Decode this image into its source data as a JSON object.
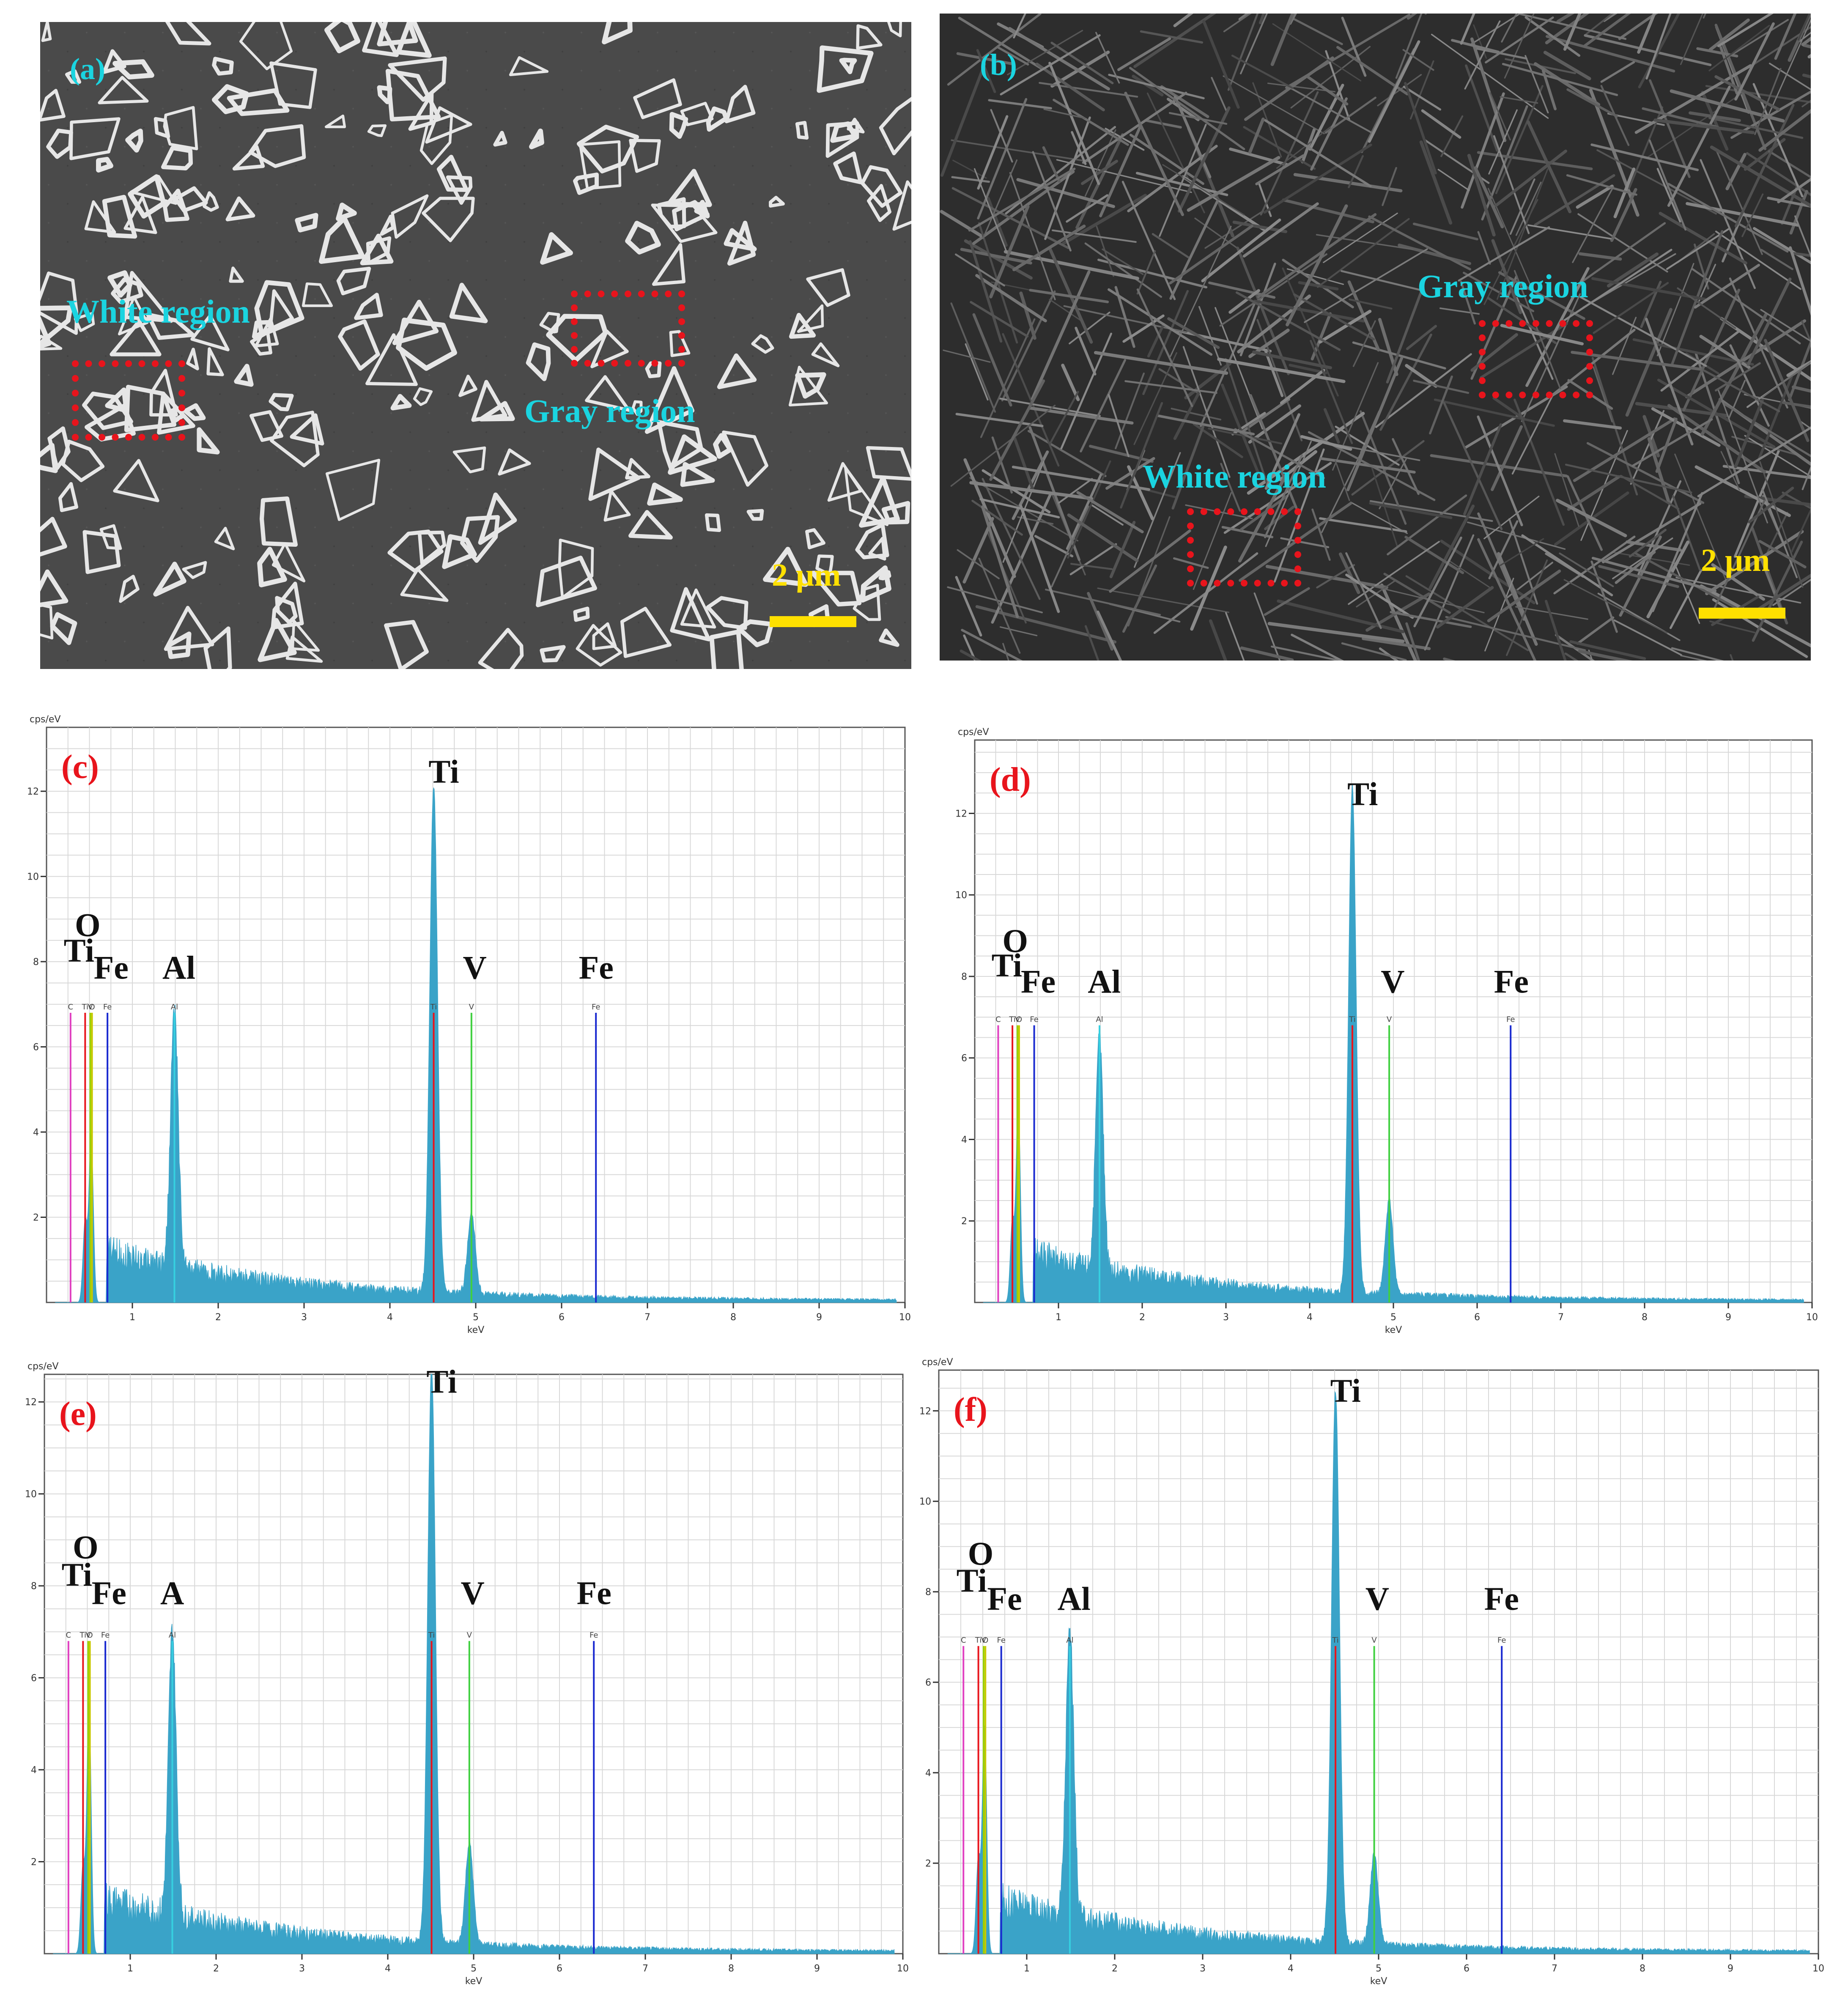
{
  "sem_panels": [
    {
      "panel_label": "(a)",
      "regions": [
        "White region",
        "Gray region"
      ],
      "scale_bar_label": "2 μm",
      "colors": {
        "region_text": "#1ad4e0",
        "roi": "#e8141c",
        "scale": "#ffe000"
      }
    },
    {
      "panel_label": "(b)",
      "regions": [
        "Gray region",
        "White region"
      ],
      "scale_bar_label": "2 μm",
      "colors": {
        "region_text": "#1ad4e0",
        "roi": "#e8141c",
        "scale": "#ffe000"
      }
    }
  ],
  "chart_data": [
    {
      "type": "line",
      "panel_label": "(c)",
      "ylabel": "cps/eV",
      "xlabel": "keV",
      "xlim": [
        0,
        10
      ],
      "ylim": [
        0,
        13.5
      ],
      "x_ticks": [
        1,
        2,
        3,
        4,
        5,
        6,
        7,
        8,
        9,
        10
      ],
      "y_ticks": [
        2,
        4,
        6,
        8,
        10,
        12
      ],
      "grid": true,
      "peaks": [
        {
          "element": "O",
          "kev": 0.52,
          "height": 3.9
        },
        {
          "element": "Ti",
          "kev": 0.45,
          "height": 1.9
        },
        {
          "element": "Al",
          "kev": 1.49,
          "height": 6.0
        },
        {
          "element": "Ti",
          "kev": 4.51,
          "height": 11.9
        },
        {
          "element": "V",
          "kev": 4.95,
          "height": 1.9
        }
      ],
      "element_markers": [
        {
          "symbol": "C",
          "kev": 0.28
        },
        {
          "symbol": "V",
          "kev": 0.51
        },
        {
          "symbol": "O",
          "kev": 0.53
        },
        {
          "symbol": "Ti",
          "kev": 0.45
        },
        {
          "symbol": "Fe",
          "kev": 0.71
        },
        {
          "symbol": "Al",
          "kev": 1.49
        },
        {
          "symbol": "Ti",
          "kev": 4.51
        },
        {
          "symbol": "V",
          "kev": 4.95
        },
        {
          "symbol": "Fe",
          "kev": 6.4
        }
      ],
      "annotations": [
        "Ti",
        "O",
        "Fe",
        "Al",
        "Ti",
        "V",
        "Fe"
      ],
      "colors": {
        "spectrum": "#3aa3c8",
        "label": "#e8141c"
      }
    },
    {
      "type": "line",
      "panel_label": "(d)",
      "ylabel": "cps/eV",
      "xlabel": "keV",
      "xlim": [
        0,
        10
      ],
      "ylim": [
        0,
        13.8
      ],
      "x_ticks": [
        1,
        2,
        3,
        4,
        5,
        6,
        7,
        8,
        9,
        10
      ],
      "y_ticks": [
        2,
        4,
        6,
        8,
        10,
        12
      ],
      "grid": true,
      "peaks": [
        {
          "element": "O",
          "kev": 0.52,
          "height": 4.9
        },
        {
          "element": "Ti",
          "kev": 0.45,
          "height": 2.0
        },
        {
          "element": "Al",
          "kev": 1.49,
          "height": 5.7
        },
        {
          "element": "Ti",
          "kev": 4.51,
          "height": 12.4
        },
        {
          "element": "V",
          "kev": 4.95,
          "height": 2.3
        }
      ],
      "element_markers": [
        {
          "symbol": "C",
          "kev": 0.28
        },
        {
          "symbol": "V",
          "kev": 0.51
        },
        {
          "symbol": "O",
          "kev": 0.53
        },
        {
          "symbol": "Ti",
          "kev": 0.45
        },
        {
          "symbol": "Fe",
          "kev": 0.71
        },
        {
          "symbol": "Al",
          "kev": 1.49
        },
        {
          "symbol": "Ti",
          "kev": 4.51
        },
        {
          "symbol": "V",
          "kev": 4.95
        },
        {
          "symbol": "Fe",
          "kev": 6.4
        }
      ],
      "annotations": [
        "Ti",
        "O",
        "Fe",
        "Al",
        "Ti",
        "V",
        "Fe"
      ],
      "colors": {
        "spectrum": "#3aa3c8",
        "label": "#e8141c"
      }
    },
    {
      "type": "line",
      "panel_label": "(e)",
      "ylabel": "cps/eV",
      "xlabel": "keV",
      "xlim": [
        0,
        10
      ],
      "ylim": [
        0,
        12.6
      ],
      "x_ticks": [
        1,
        2,
        3,
        4,
        5,
        6,
        7,
        8,
        9,
        10
      ],
      "y_ticks": [
        2,
        4,
        6,
        8,
        10,
        12
      ],
      "grid": true,
      "peaks": [
        {
          "element": "O",
          "kev": 0.52,
          "height": 5.4
        },
        {
          "element": "Ti",
          "kev": 0.45,
          "height": 1.9
        },
        {
          "element": "Al",
          "kev": 1.49,
          "height": 6.2
        },
        {
          "element": "Ti",
          "kev": 4.51,
          "height": 12.5
        },
        {
          "element": "V",
          "kev": 4.95,
          "height": 2.2
        }
      ],
      "element_markers": [
        {
          "symbol": "C",
          "kev": 0.28
        },
        {
          "symbol": "V",
          "kev": 0.51
        },
        {
          "symbol": "O",
          "kev": 0.53
        },
        {
          "symbol": "Ti",
          "kev": 0.45
        },
        {
          "symbol": "Fe",
          "kev": 0.71
        },
        {
          "symbol": "Al",
          "kev": 1.49
        },
        {
          "symbol": "Ti",
          "kev": 4.51
        },
        {
          "symbol": "V",
          "kev": 4.95
        },
        {
          "symbol": "Fe",
          "kev": 6.4
        }
      ],
      "annotations": [
        "Ti",
        "O",
        "Fe",
        "A",
        "Ti",
        "V",
        "Fe"
      ],
      "colors": {
        "spectrum": "#3aa3c8",
        "label": "#e8141c"
      }
    },
    {
      "type": "line",
      "panel_label": "(f)",
      "ylabel": "cps/eV",
      "xlabel": "keV",
      "xlim": [
        0,
        10
      ],
      "ylim": [
        0,
        12.9
      ],
      "x_ticks": [
        1,
        2,
        3,
        4,
        5,
        6,
        7,
        8,
        9,
        10
      ],
      "y_ticks": [
        2,
        4,
        6,
        8,
        10,
        12
      ],
      "grid": true,
      "peaks": [
        {
          "element": "O",
          "kev": 0.52,
          "height": 5.0
        },
        {
          "element": "Ti",
          "kev": 0.45,
          "height": 2.1
        },
        {
          "element": "Al",
          "kev": 1.49,
          "height": 6.3
        },
        {
          "element": "Ti",
          "kev": 4.51,
          "height": 12.2
        },
        {
          "element": "V",
          "kev": 4.95,
          "height": 2.0
        }
      ],
      "element_markers": [
        {
          "symbol": "C",
          "kev": 0.28
        },
        {
          "symbol": "V",
          "kev": 0.51
        },
        {
          "symbol": "O",
          "kev": 0.53
        },
        {
          "symbol": "Ti",
          "kev": 0.45
        },
        {
          "symbol": "Fe",
          "kev": 0.71
        },
        {
          "symbol": "Al",
          "kev": 1.49
        },
        {
          "symbol": "Ti",
          "kev": 4.51
        },
        {
          "symbol": "V",
          "kev": 4.95
        },
        {
          "symbol": "Fe",
          "kev": 6.4
        }
      ],
      "annotations": [
        "Ti",
        "O",
        "Fe",
        "Al",
        "Ti",
        "V",
        "Fe"
      ],
      "colors": {
        "spectrum": "#3aa3c8",
        "label": "#e8141c"
      }
    }
  ]
}
